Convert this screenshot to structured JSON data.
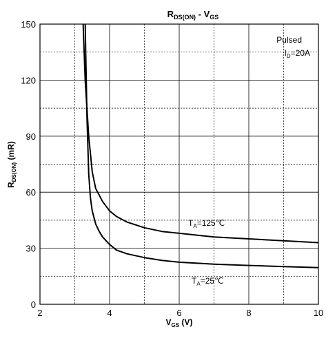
{
  "chart_data": {
    "type": "line",
    "title": {
      "main": "R",
      "sub": "DS(ON)",
      "sep": " - V",
      "sub2": "GS"
    },
    "xlabel": {
      "main": "V",
      "sub": "GS",
      "unit": " (V)"
    },
    "ylabel": {
      "main": "R",
      "sub": "DS(ON)",
      "unit": " (mR)"
    },
    "xlim": [
      2,
      10
    ],
    "ylim": [
      0,
      150
    ],
    "x_ticks": [
      2,
      4,
      6,
      8,
      10
    ],
    "y_ticks": [
      0,
      30,
      60,
      90,
      120,
      150
    ],
    "x_minor_dashed": [
      3,
      5,
      7,
      9
    ],
    "y_minor_dashed": [
      15,
      45,
      75,
      105,
      135
    ],
    "grid": true,
    "annotation": {
      "line1": "Pulsed",
      "line2_main": "I",
      "line2_sub": "D",
      "line2_rest": "=20A"
    },
    "series": [
      {
        "name": {
          "main": "T",
          "sub": "A",
          "rest": "=125℃"
        },
        "color": "#000000",
        "x": [
          3.24,
          3.3,
          3.4,
          3.5,
          3.6,
          3.8,
          4.0,
          4.2,
          4.5,
          5.0,
          5.5,
          6.0,
          7.0,
          8.0,
          9.0,
          10.0
        ],
        "y": [
          150,
          120,
          90,
          71,
          62,
          55,
          50,
          47,
          44,
          41,
          39,
          38,
          36,
          35,
          34,
          33
        ]
      },
      {
        "name": {
          "main": "T",
          "sub": "A",
          "rest": "=25℃"
        },
        "color": "#000000",
        "x": [
          3.3,
          3.35,
          3.4,
          3.45,
          3.5,
          3.6,
          3.7,
          3.8,
          4.0,
          4.2,
          4.5,
          5.0,
          5.5,
          6.0,
          7.0,
          8.0,
          9.0,
          10.0
        ],
        "y": [
          150,
          100,
          70,
          57,
          50,
          43,
          39,
          36,
          32,
          29,
          27,
          25,
          23.5,
          22.5,
          21.5,
          20.8,
          20.2,
          19.6
        ]
      }
    ]
  }
}
